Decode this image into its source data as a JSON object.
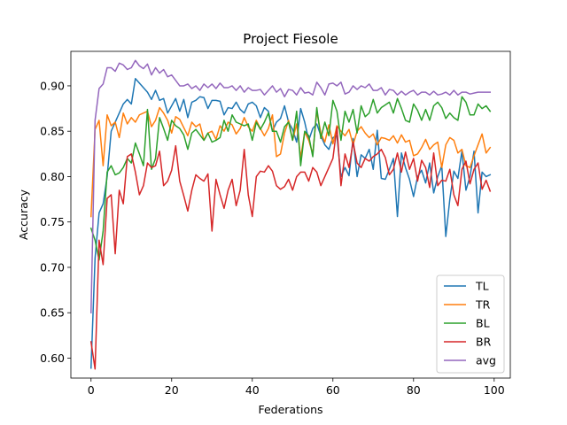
{
  "chart_data": {
    "type": "line",
    "title": "Project Fiesole",
    "xlabel": "Federations",
    "ylabel": "Accuracy",
    "xlim": [
      -5,
      104
    ],
    "ylim": [
      0.578,
      0.938
    ],
    "xticks": [
      0,
      20,
      40,
      60,
      80,
      100
    ],
    "yticks": [
      0.6,
      0.65,
      0.7,
      0.75,
      0.8,
      0.85,
      0.9
    ],
    "ytick_labels": [
      "0.60",
      "0.65",
      "0.70",
      "0.75",
      "0.80",
      "0.85",
      "0.90"
    ],
    "xtick_labels": [
      "0",
      "20",
      "40",
      "60",
      "80",
      "100"
    ],
    "grid": false,
    "legend_position": "lower-right",
    "x": [
      0,
      1,
      2,
      3,
      4,
      5,
      6,
      7,
      8,
      9,
      10,
      11,
      12,
      13,
      14,
      15,
      16,
      17,
      18,
      19,
      20,
      21,
      22,
      23,
      24,
      25,
      26,
      27,
      28,
      29,
      30,
      31,
      32,
      33,
      34,
      35,
      36,
      37,
      38,
      39,
      40,
      41,
      42,
      43,
      44,
      45,
      46,
      47,
      48,
      49,
      50,
      51,
      52,
      53,
      54,
      55,
      56,
      57,
      58,
      59,
      60,
      61,
      62,
      63,
      64,
      65,
      66,
      67,
      68,
      69,
      70,
      71,
      72,
      73,
      74,
      75,
      76,
      77,
      78,
      79,
      80,
      81,
      82,
      83,
      84,
      85,
      86,
      87,
      88,
      89,
      90,
      91,
      92,
      93,
      94,
      95,
      96,
      97,
      98,
      99
    ],
    "series": [
      {
        "name": "TL",
        "color": "#1f77b4",
        "values": [
          0.589,
          0.71,
          0.76,
          0.77,
          0.8,
          0.85,
          0.86,
          0.87,
          0.88,
          0.885,
          0.88,
          0.908,
          0.903,
          0.898,
          0.893,
          0.885,
          0.895,
          0.884,
          0.886,
          0.87,
          0.878,
          0.886,
          0.872,
          0.885,
          0.865,
          0.882,
          0.884,
          0.888,
          0.887,
          0.875,
          0.884,
          0.884,
          0.883,
          0.868,
          0.876,
          0.875,
          0.882,
          0.874,
          0.87,
          0.88,
          0.882,
          0.878,
          0.865,
          0.876,
          0.872,
          0.85,
          0.86,
          0.864,
          0.878,
          0.86,
          0.852,
          0.838,
          0.875,
          0.86,
          0.84,
          0.853,
          0.858,
          0.845,
          0.835,
          0.83,
          0.843,
          0.845,
          0.8,
          0.81,
          0.801,
          0.842,
          0.8,
          0.824,
          0.82,
          0.83,
          0.808,
          0.851,
          0.798,
          0.797,
          0.808,
          0.82,
          0.756,
          0.826,
          0.81,
          0.797,
          0.778,
          0.8,
          0.807,
          0.793,
          0.815,
          0.782,
          0.8,
          0.812,
          0.734,
          0.775,
          0.806,
          0.798,
          0.828,
          0.785,
          0.8,
          0.828,
          0.76,
          0.805,
          0.8,
          0.802
        ]
      },
      {
        "name": "TR",
        "color": "#ff7f0e",
        "values": [
          0.756,
          0.852,
          0.862,
          0.812,
          0.868,
          0.856,
          0.86,
          0.843,
          0.87,
          0.858,
          0.865,
          0.86,
          0.868,
          0.87,
          0.872,
          0.855,
          0.862,
          0.876,
          0.87,
          0.862,
          0.848,
          0.866,
          0.863,
          0.854,
          0.845,
          0.86,
          0.855,
          0.858,
          0.84,
          0.848,
          0.85,
          0.841,
          0.856,
          0.85,
          0.86,
          0.857,
          0.847,
          0.853,
          0.865,
          0.855,
          0.85,
          0.862,
          0.853,
          0.845,
          0.853,
          0.868,
          0.822,
          0.825,
          0.848,
          0.862,
          0.84,
          0.858,
          0.821,
          0.849,
          0.84,
          0.825,
          0.872,
          0.848,
          0.838,
          0.857,
          0.836,
          0.856,
          0.85,
          0.845,
          0.852,
          0.835,
          0.85,
          0.855,
          0.848,
          0.843,
          0.847,
          0.835,
          0.843,
          0.842,
          0.84,
          0.845,
          0.837,
          0.846,
          0.838,
          0.84,
          0.823,
          0.825,
          0.832,
          0.841,
          0.83,
          0.835,
          0.838,
          0.81,
          0.835,
          0.843,
          0.84,
          0.826,
          0.83,
          0.812,
          0.81,
          0.823,
          0.835,
          0.847,
          0.826,
          0.832
        ]
      },
      {
        "name": "BL",
        "color": "#2ca02c",
        "values": [
          0.743,
          0.73,
          0.708,
          0.74,
          0.805,
          0.812,
          0.802,
          0.804,
          0.81,
          0.82,
          0.815,
          0.837,
          0.825,
          0.812,
          0.874,
          0.808,
          0.82,
          0.865,
          0.853,
          0.84,
          0.862,
          0.856,
          0.853,
          0.846,
          0.83,
          0.848,
          0.852,
          0.846,
          0.84,
          0.848,
          0.838,
          0.84,
          0.843,
          0.862,
          0.85,
          0.868,
          0.86,
          0.858,
          0.856,
          0.858,
          0.84,
          0.86,
          0.852,
          0.86,
          0.87,
          0.85,
          0.85,
          0.838,
          0.855,
          0.86,
          0.84,
          0.872,
          0.812,
          0.85,
          0.845,
          0.822,
          0.876,
          0.842,
          0.86,
          0.845,
          0.884,
          0.872,
          0.84,
          0.872,
          0.86,
          0.874,
          0.848,
          0.878,
          0.866,
          0.87,
          0.885,
          0.87,
          0.876,
          0.879,
          0.882,
          0.87,
          0.886,
          0.875,
          0.862,
          0.86,
          0.88,
          0.873,
          0.862,
          0.874,
          0.862,
          0.878,
          0.882,
          0.876,
          0.864,
          0.87,
          0.865,
          0.862,
          0.888,
          0.882,
          0.868,
          0.868,
          0.88,
          0.875,
          0.878,
          0.872
        ]
      },
      {
        "name": "BR",
        "color": "#d62728",
        "values": [
          0.618,
          0.588,
          0.73,
          0.703,
          0.776,
          0.78,
          0.715,
          0.785,
          0.77,
          0.822,
          0.825,
          0.805,
          0.78,
          0.79,
          0.815,
          0.81,
          0.812,
          0.828,
          0.79,
          0.795,
          0.807,
          0.834,
          0.795,
          0.779,
          0.762,
          0.785,
          0.802,
          0.798,
          0.795,
          0.803,
          0.74,
          0.797,
          0.78,
          0.765,
          0.785,
          0.797,
          0.768,
          0.785,
          0.83,
          0.78,
          0.756,
          0.8,
          0.806,
          0.805,
          0.812,
          0.806,
          0.79,
          0.786,
          0.789,
          0.797,
          0.785,
          0.8,
          0.805,
          0.805,
          0.795,
          0.81,
          0.805,
          0.79,
          0.8,
          0.81,
          0.82,
          0.855,
          0.79,
          0.825,
          0.81,
          0.838,
          0.815,
          0.81,
          0.82,
          0.817,
          0.822,
          0.825,
          0.83,
          0.821,
          0.802,
          0.808,
          0.826,
          0.805,
          0.827,
          0.808,
          0.82,
          0.795,
          0.818,
          0.81,
          0.788,
          0.826,
          0.79,
          0.796,
          0.795,
          0.808,
          0.78,
          0.768,
          0.808,
          0.817,
          0.792,
          0.808,
          0.815,
          0.786,
          0.796,
          0.784
        ]
      },
      {
        "name": "avg",
        "color": "#9467bd",
        "values": [
          0.65,
          0.862,
          0.897,
          0.902,
          0.92,
          0.92,
          0.916,
          0.925,
          0.923,
          0.918,
          0.92,
          0.928,
          0.922,
          0.919,
          0.924,
          0.912,
          0.92,
          0.914,
          0.918,
          0.91,
          0.912,
          0.906,
          0.9,
          0.9,
          0.902,
          0.897,
          0.9,
          0.895,
          0.902,
          0.898,
          0.902,
          0.897,
          0.903,
          0.898,
          0.898,
          0.9,
          0.895,
          0.9,
          0.893,
          0.898,
          0.895,
          0.895,
          0.896,
          0.89,
          0.895,
          0.9,
          0.893,
          0.897,
          0.888,
          0.896,
          0.895,
          0.89,
          0.898,
          0.892,
          0.893,
          0.89,
          0.904,
          0.898,
          0.89,
          0.902,
          0.903,
          0.9,
          0.904,
          0.891,
          0.893,
          0.9,
          0.896,
          0.9,
          0.898,
          0.902,
          0.895,
          0.895,
          0.898,
          0.89,
          0.896,
          0.895,
          0.89,
          0.894,
          0.89,
          0.893,
          0.895,
          0.89,
          0.893,
          0.893,
          0.89,
          0.894,
          0.89,
          0.891,
          0.893,
          0.89,
          0.895,
          0.89,
          0.893,
          0.893,
          0.891,
          0.892,
          0.893,
          0.893,
          0.893,
          0.893
        ]
      }
    ]
  }
}
